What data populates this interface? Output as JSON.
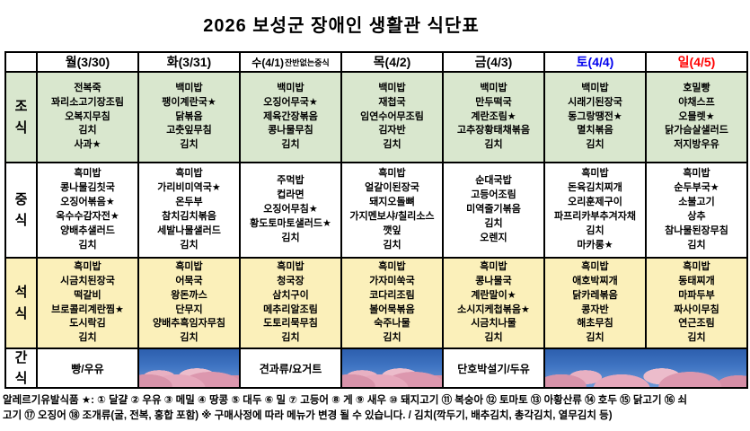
{
  "title": "2026 보성군 장애인 생활관 식단표",
  "colors": {
    "saturday_header": "#0000ee",
    "sunday_header": "#ff0000",
    "breakfast_row_bg": "#d9e7ce",
    "lunch_row_bg": "#ffffff",
    "dinner_row_bg": "#fbf0ba",
    "border": "#000000"
  },
  "days": [
    {
      "label": "월(3/30)"
    },
    {
      "label": "화(3/31)"
    },
    {
      "label": "수(4/1)",
      "suffix": "잔반없는중식"
    },
    {
      "label": "목(4/2)"
    },
    {
      "label": "금(4/3)"
    },
    {
      "label": "토(4/4)"
    },
    {
      "label": "일(4/5)"
    }
  ],
  "meals": {
    "breakfast": {
      "label": "조식",
      "menus": [
        [
          "전복죽",
          "꽈리소고기장조림",
          "오복지무침",
          "김치",
          "사과★"
        ],
        [
          "백미밥",
          "팽이계란국★",
          "닭볶음",
          "고춧잎무침",
          "김치"
        ],
        [
          "백미밥",
          "오징어무국★",
          "제육간장볶음",
          "콩나물무침",
          "김치"
        ],
        [
          "백미밥",
          "재첩국",
          "임연수어무조림",
          "김자반",
          "김치"
        ],
        [
          "백미밥",
          "만두떡국",
          "계란조림★",
          "고추장황태채볶음",
          "김치"
        ],
        [
          "백미밥",
          "시래기된장국",
          "동그랑땡전★",
          "멸치볶음",
          "김치"
        ],
        [
          "호밀빵",
          "야채스프",
          "오믈렛★",
          "닭가슴살샐러드",
          "저지방우유"
        ]
      ]
    },
    "lunch": {
      "label": "중식",
      "menus": [
        [
          "흑미밥",
          "콩나물김칫국",
          "오징어볶음★",
          "옥수수감자전★",
          "양배추샐러드",
          "김치"
        ],
        [
          "흑미밥",
          "가리비미역국★",
          "온두부",
          "참치김치볶음",
          "세발나물샐러드",
          "김치"
        ],
        [
          "주먹밥",
          "컵라면",
          "오징어무침★",
          "황도토마토샐러드★",
          "김치"
        ],
        [
          "흑미밥",
          "얼갈이된장국",
          "돼지오돌뼈",
          "가지멘보샤/칠리소스",
          "깻잎",
          "김치"
        ],
        [
          "순대국밥",
          "고등어조림",
          "미역줄기볶음",
          "김치",
          "오렌지"
        ],
        [
          "흑미밥",
          "돈육김치찌개",
          "오리훈제구이",
          "파프리카부추겨자채",
          "김치",
          "마카롱★"
        ],
        [
          "흑미밥",
          "순두부국★",
          "소불고기",
          "상추",
          "참나물된장무침",
          "김치"
        ]
      ]
    },
    "dinner": {
      "label": "석식",
      "menus": [
        [
          "흑미밥",
          "시금치된장국",
          "떡갈비",
          "브로콜리계란찜★",
          "도시락김",
          "김치"
        ],
        [
          "흑미밥",
          "어묵국",
          "왕돈까스",
          "단무지",
          "양배추흑임자무침",
          "김치"
        ],
        [
          "흑미밥",
          "청국장",
          "삼치구이",
          "메추리알조림",
          "도토리묵무침",
          "김치"
        ],
        [
          "흑미밥",
          "가자미쑥국",
          "코다리조림",
          "볼어묵볶음",
          "숙주나물",
          "김치"
        ],
        [
          "흑미밥",
          "콩나물국",
          "계란말이★",
          "소시지케첩볶음★",
          "시금치나물",
          "김치"
        ],
        [
          "흑미밥",
          "애호박찌개",
          "닭카레볶음",
          "콩자반",
          "해초무침",
          "김치"
        ],
        [
          "흑미밥",
          "동태찌개",
          "마파두부",
          "짜사이무침",
          "연근조림",
          "김치"
        ]
      ]
    },
    "snack": {
      "label": "간식",
      "cells": [
        {
          "kind": "text",
          "value": "빵/우유"
        },
        {
          "kind": "photo",
          "name": "cherry-blossoms"
        },
        {
          "kind": "text",
          "value": "견과류/요거트"
        },
        {
          "kind": "photo",
          "name": "cherry-blossoms"
        },
        {
          "kind": "text",
          "value": "단호박설기/두유"
        },
        {
          "kind": "photo",
          "name": "cherry-blossoms",
          "span": 2
        }
      ]
    }
  },
  "footer": {
    "lines": [
      "알레르기유발식품 ★: ① 달걀 ② 우유 ③ 메밀 ④ 땅콩 ⑤ 대두 ⑥ 밀 ⑦ 고등어 ⑧ 게 ⑨ 새우 ⑩ 돼지고기 ⑪ 복숭아 ⑫ 토마토 ⑬ 아황산류 ⑭ 호두 ⑮ 닭고기 ⑯ 쇠",
      "고기 ⑰ 오징어 ⑱ 조개류(굴, 전복, 홍합 포함) ※ 구매사정에 따라 메뉴가 변경 될 수 있습니다.  / 김치(깍두기, 배추김치, 총각김치, 열무김치 등)"
    ]
  }
}
